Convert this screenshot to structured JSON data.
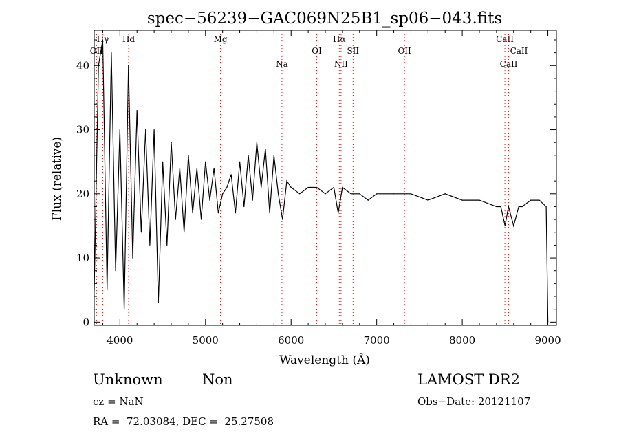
{
  "chart_data": {
    "type": "line",
    "title": "spec−56239−GAC069N25B1_sp06−043.fits",
    "xlabel": "Wavelength (Å)",
    "ylabel": "Flux (relative)",
    "xlim": [
      3700,
      9100
    ],
    "ylim": [
      -0.5,
      45.5
    ],
    "xticks": [
      4000,
      5000,
      6000,
      7000,
      8000,
      9000
    ],
    "yticks": [
      0,
      10,
      20,
      30,
      40
    ],
    "line_color": "#000000",
    "marker_color": "#ff0000",
    "grid": false,
    "lines": [
      {
        "label": "Hγ",
        "x": 3800,
        "row": 0
      },
      {
        "label": "OII",
        "x": 3727,
        "row": 1
      },
      {
        "label": "Hd",
        "x": 4102,
        "row": 0
      },
      {
        "label": "Mg",
        "x": 5175,
        "row": 0
      },
      {
        "label": "Na",
        "x": 5893,
        "row": 2
      },
      {
        "label": "OI",
        "x": 6300,
        "row": 1
      },
      {
        "label": "Hα",
        "x": 6563,
        "row": 0
      },
      {
        "label": "NII",
        "x": 6584,
        "row": 2
      },
      {
        "label": "SII",
        "x": 6724,
        "row": 1
      },
      {
        "label": "OII",
        "x": 7325,
        "row": 1
      },
      {
        "label": "CaII",
        "x": 8498,
        "row": 0
      },
      {
        "label": "CaII",
        "x": 8542,
        "row": 2
      },
      {
        "label": "CaII",
        "x": 8662,
        "row": 1
      }
    ],
    "series": [
      {
        "x": [
          3700,
          3750,
          3800,
          3850,
          3900,
          3950,
          4000,
          4050,
          4100,
          4150,
          4200,
          4250,
          4300,
          4350,
          4400,
          4450,
          4500,
          4550,
          4600,
          4650,
          4700,
          4750,
          4800,
          4850,
          4900,
          4950,
          5000,
          5050,
          5100,
          5150,
          5200,
          5250,
          5300,
          5350,
          5400,
          5450,
          5500,
          5550,
          5600,
          5650,
          5700,
          5750,
          5800,
          5850,
          5900,
          5950,
          6000,
          6100,
          6200,
          6300,
          6400,
          6500,
          6550,
          6600,
          6700,
          6800,
          6900,
          7000,
          7200,
          7400,
          7600,
          7800,
          8000,
          8200,
          8400,
          8450,
          8500,
          8540,
          8600,
          8660,
          8700,
          8800,
          8900,
          8980,
          9000
        ],
        "y": [
          5,
          40,
          44,
          5,
          42,
          8,
          30,
          2,
          40,
          10,
          33,
          14,
          30,
          12,
          30,
          3,
          25,
          12,
          28,
          16,
          24,
          14,
          26,
          17,
          24,
          16,
          25,
          19,
          24,
          17,
          20,
          21,
          23,
          17,
          25,
          18,
          26,
          19,
          28,
          21,
          27,
          17,
          26,
          20,
          16,
          22,
          21,
          20,
          21,
          21,
          20,
          21,
          17,
          21,
          20,
          20,
          19,
          20,
          20,
          20,
          19,
          20,
          19,
          19,
          18,
          18,
          15,
          18,
          15,
          18,
          18,
          19,
          19,
          18,
          0
        ]
      }
    ]
  },
  "info": {
    "class": "Unknown",
    "subclass": "Non",
    "cz": "cz = NaN",
    "coords": "RA =  72.03084, DEC =  25.27508",
    "survey": "LAMOST DR2",
    "obs_date": "Obs−Date: 20121107"
  }
}
